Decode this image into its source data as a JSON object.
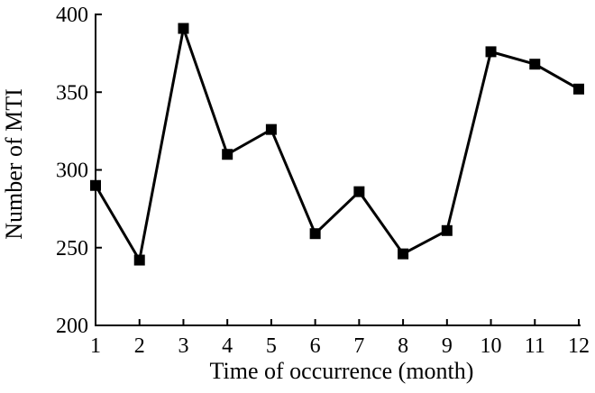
{
  "chart_data": {
    "type": "line",
    "title": "",
    "xlabel": "Time of occurrence (month)",
    "ylabel": "Number of MTI",
    "x": [
      1,
      2,
      3,
      4,
      5,
      6,
      7,
      8,
      9,
      10,
      11,
      12
    ],
    "x_tick_labels": [
      "1",
      "2",
      "3",
      "4",
      "5",
      "6",
      "7",
      "8",
      "9",
      "10",
      "11",
      "12"
    ],
    "xlim": [
      1,
      12
    ],
    "ylim": [
      200,
      400
    ],
    "y_ticks": [
      200,
      250,
      300,
      350,
      400
    ],
    "y_tick_labels": [
      "200",
      "250",
      "300",
      "350",
      "400"
    ],
    "series": [
      {
        "values": [
          290,
          242,
          391,
          310,
          326,
          259,
          286,
          246,
          261,
          376,
          368,
          352
        ],
        "marker": "square",
        "color": "#000000"
      }
    ],
    "grid": false,
    "legend": "none"
  }
}
